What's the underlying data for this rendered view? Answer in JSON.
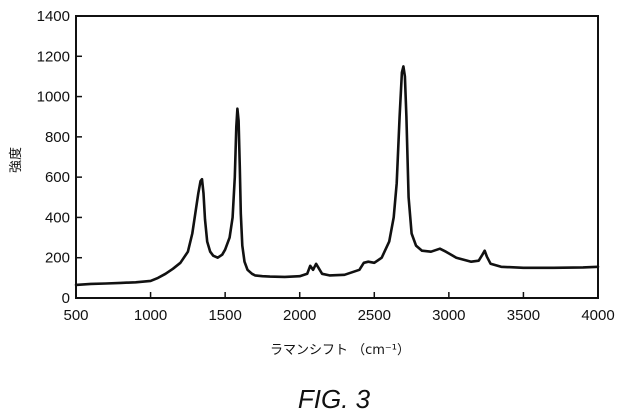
{
  "chart_data": {
    "type": "line",
    "xlabel": "ラマンシフト （cm⁻¹）",
    "ylabel": "強度",
    "xlim": [
      500,
      4000
    ],
    "ylim": [
      0,
      1400
    ],
    "xticks": [
      500,
      1000,
      1500,
      2000,
      2500,
      3000,
      3500,
      4000
    ],
    "yticks": [
      0,
      200,
      400,
      600,
      800,
      1000,
      1200,
      1400
    ],
    "grid": false,
    "series": [
      {
        "x": [
          500,
          600,
          700,
          800,
          900,
          1000,
          1050,
          1100,
          1150,
          1200,
          1250,
          1280,
          1300,
          1320,
          1335,
          1345,
          1355,
          1365,
          1380,
          1400,
          1420,
          1450,
          1480,
          1500,
          1530,
          1550,
          1565,
          1575,
          1582,
          1590,
          1598,
          1605,
          1615,
          1630,
          1650,
          1680,
          1700,
          1750,
          1800,
          1900,
          2000,
          2050,
          2070,
          2090,
          2110,
          2130,
          2150,
          2200,
          2300,
          2400,
          2430,
          2460,
          2500,
          2550,
          2600,
          2630,
          2650,
          2670,
          2685,
          2695,
          2705,
          2715,
          2730,
          2750,
          2780,
          2820,
          2880,
          2940,
          2980,
          3050,
          3150,
          3200,
          3225,
          3240,
          3255,
          3280,
          3350,
          3500,
          3700,
          3900,
          4000
        ],
        "y": [
          65,
          70,
          72,
          75,
          78,
          85,
          100,
          120,
          145,
          175,
          230,
          320,
          420,
          520,
          580,
          590,
          520,
          390,
          280,
          230,
          210,
          200,
          215,
          240,
          300,
          400,
          600,
          850,
          940,
          880,
          650,
          420,
          260,
          180,
          140,
          120,
          112,
          108,
          106,
          105,
          108,
          120,
          160,
          140,
          170,
          145,
          120,
          112,
          115,
          140,
          175,
          180,
          175,
          200,
          280,
          400,
          570,
          900,
          1120,
          1150,
          1100,
          900,
          500,
          320,
          260,
          235,
          230,
          245,
          230,
          200,
          180,
          185,
          215,
          235,
          205,
          170,
          155,
          150,
          150,
          152,
          155
        ]
      }
    ]
  },
  "caption": "FIG. 3"
}
